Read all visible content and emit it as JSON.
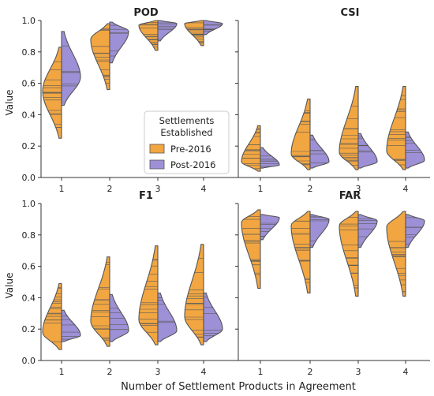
{
  "figure": {
    "xlabel": "Number of Settlement Products in Agreement",
    "ylabel": "Value",
    "legend": {
      "title_line1": "Settlements",
      "title_line2": "Established",
      "placement": "inside POD panel, lower-right",
      "items": [
        "Pre-2016",
        "Post-2016"
      ]
    },
    "colors": {
      "pre": "#f2a641",
      "post": "#9e90d6",
      "edge": "#555555"
    },
    "yticks": [
      "0.0",
      "0.2",
      "0.4",
      "0.6",
      "0.8",
      "1.0"
    ],
    "xticks": [
      "1",
      "2",
      "3",
      "4"
    ]
  },
  "chart_data": [
    {
      "type": "violin",
      "title": "POD",
      "ylim": [
        0,
        1
      ],
      "categories": [
        "1",
        "2",
        "3",
        "4"
      ],
      "series": [
        {
          "name": "Pre-2016",
          "side": "left",
          "ranges": [
            [
              0.25,
              0.83
            ],
            [
              0.56,
              0.98
            ],
            [
              0.81,
              1.0
            ],
            [
              0.84,
              1.0
            ]
          ],
          "modes": [
            0.55,
            0.88,
            0.97,
            0.98
          ]
        },
        {
          "name": "Post-2016",
          "side": "right",
          "ranges": [
            [
              0.46,
              0.93
            ],
            [
              0.73,
              0.99
            ],
            [
              0.87,
              1.0
            ],
            [
              0.91,
              1.0
            ]
          ],
          "modes": [
            0.64,
            0.93,
            0.98,
            0.98
          ]
        }
      ]
    },
    {
      "type": "violin",
      "title": "CSI",
      "ylim": [
        0,
        1
      ],
      "categories": [
        "1",
        "2",
        "3",
        "4"
      ],
      "series": [
        {
          "name": "Pre-2016",
          "side": "left",
          "ranges": [
            [
              0.04,
              0.33
            ],
            [
              0.05,
              0.5
            ],
            [
              0.05,
              0.58
            ],
            [
              0.05,
              0.58
            ]
          ],
          "modes": [
            0.1,
            0.15,
            0.16,
            0.17
          ]
        },
        {
          "name": "Post-2016",
          "side": "right",
          "ranges": [
            [
              0.06,
              0.19
            ],
            [
              0.06,
              0.27
            ],
            [
              0.06,
              0.28
            ],
            [
              0.06,
              0.29
            ]
          ],
          "modes": [
            0.08,
            0.1,
            0.1,
            0.11
          ]
        }
      ]
    },
    {
      "type": "violin",
      "title": "F1",
      "ylim": [
        0,
        1
      ],
      "categories": [
        "1",
        "2",
        "3",
        "4"
      ],
      "series": [
        {
          "name": "Pre-2016",
          "side": "left",
          "ranges": [
            [
              0.07,
              0.49
            ],
            [
              0.09,
              0.66
            ],
            [
              0.1,
              0.73
            ],
            [
              0.1,
              0.74
            ]
          ],
          "modes": [
            0.18,
            0.25,
            0.26,
            0.28
          ]
        },
        {
          "name": "Post-2016",
          "side": "right",
          "ranges": [
            [
              0.12,
              0.32
            ],
            [
              0.12,
              0.42
            ],
            [
              0.12,
              0.43
            ],
            [
              0.12,
              0.43
            ]
          ],
          "modes": [
            0.16,
            0.19,
            0.19,
            0.2
          ]
        }
      ]
    },
    {
      "type": "violin",
      "title": "FAR",
      "ylim": [
        0,
        1
      ],
      "categories": [
        "1",
        "2",
        "3",
        "4"
      ],
      "series": [
        {
          "name": "Pre-2016",
          "side": "left",
          "ranges": [
            [
              0.46,
              0.96
            ],
            [
              0.43,
              0.95
            ],
            [
              0.41,
              0.95
            ],
            [
              0.41,
              0.95
            ]
          ],
          "modes": [
            0.88,
            0.86,
            0.86,
            0.85
          ]
        },
        {
          "name": "Post-2016",
          "side": "right",
          "ranges": [
            [
              0.77,
              0.93
            ],
            [
              0.72,
              0.93
            ],
            [
              0.72,
              0.93
            ],
            [
              0.72,
              0.93
            ]
          ],
          "modes": [
            0.91,
            0.9,
            0.89,
            0.89
          ]
        }
      ]
    }
  ]
}
